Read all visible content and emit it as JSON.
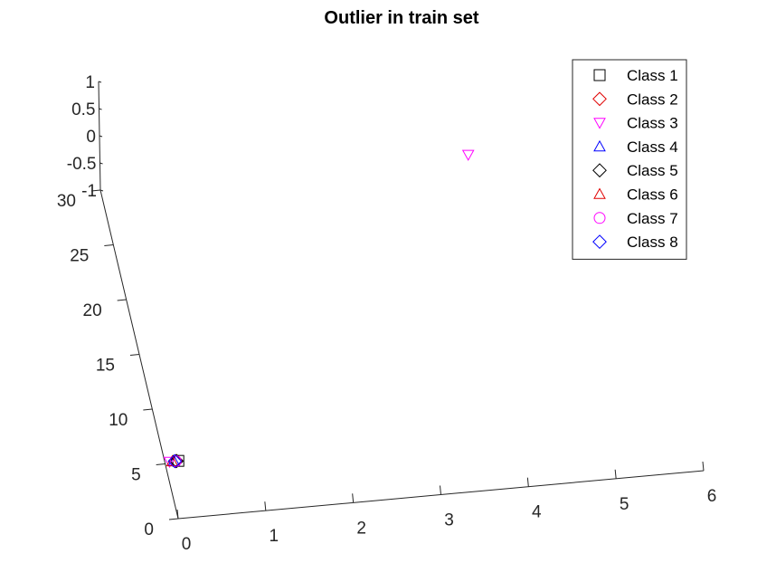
{
  "chart_data": {
    "type": "scatter",
    "title": "Outlier in train set",
    "x_axis": {
      "range": [
        0,
        6
      ],
      "ticks": [
        0,
        1,
        2,
        3,
        4,
        5,
        6
      ],
      "labels": [
        "0",
        "1",
        "2",
        "3",
        "4",
        "5",
        "6"
      ]
    },
    "y_axis": {
      "range": [
        0,
        30
      ],
      "ticks": [
        0,
        5,
        10,
        15,
        20,
        25,
        30
      ],
      "labels": [
        "0",
        "5",
        "10",
        "15",
        "20",
        "25",
        "30"
      ]
    },
    "z_axis": {
      "range": [
        -1,
        1
      ],
      "ticks": [
        -1,
        -0.5,
        0,
        0.5,
        1
      ],
      "labels": [
        "-1",
        "-0.5",
        "0",
        "0.5",
        "1"
      ]
    },
    "grid": false,
    "legend_position": "top-right",
    "series": [
      {
        "name": "Class 1",
        "marker": "square",
        "color": "#000000",
        "points": [
          [
            0.15,
            5,
            0
          ]
        ]
      },
      {
        "name": "Class 2",
        "marker": "diamond",
        "color": "#e00000",
        "points": [
          [
            0.12,
            5,
            0
          ]
        ]
      },
      {
        "name": "Class 3",
        "marker": "triangle-down",
        "color": "#ff00ff",
        "points": [
          [
            0.05,
            5,
            0
          ],
          [
            4.2,
            30,
            0
          ]
        ]
      },
      {
        "name": "Class 4",
        "marker": "triangle-up",
        "color": "#0000ff",
        "points": [
          [
            0.1,
            5,
            0
          ]
        ]
      },
      {
        "name": "Class 5",
        "marker": "diamond",
        "color": "#000000",
        "points": [
          [
            0.13,
            5,
            0
          ]
        ]
      },
      {
        "name": "Class 6",
        "marker": "triangle-up",
        "color": "#e00000",
        "points": [
          [
            0.08,
            5,
            0
          ]
        ]
      },
      {
        "name": "Class 7",
        "marker": "circle",
        "color": "#ff00ff",
        "points": [
          [
            0.12,
            5,
            0
          ]
        ]
      },
      {
        "name": "Class 8",
        "marker": "diamond",
        "color": "#0000ff",
        "points": [
          [
            0.11,
            5,
            0
          ]
        ]
      }
    ]
  }
}
